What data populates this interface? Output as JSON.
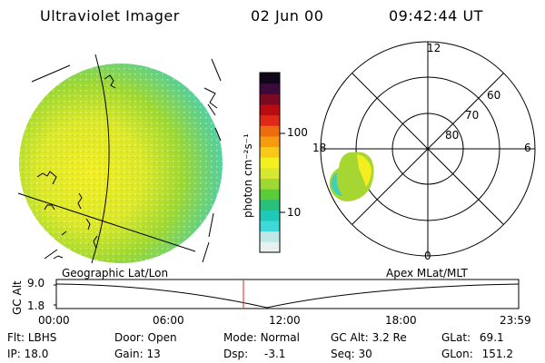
{
  "header": {
    "instrument": "Ultraviolet Imager",
    "date": "02 Jun 00",
    "time": "09:42:44 UT"
  },
  "colorbar": {
    "unit_label": "photon cm⁻²s⁻¹",
    "tick_labels": [
      "100",
      "10"
    ],
    "colors": [
      "#e8f0f0",
      "#bfe7e8",
      "#3fd8d8",
      "#1ec9b8",
      "#28c07a",
      "#5acc3a",
      "#9ed832",
      "#d8e830",
      "#f4f020",
      "#f8c818",
      "#f89a10",
      "#f06a10",
      "#e02818",
      "#b80c10",
      "#7a0a24",
      "#3a0a3c",
      "#100818"
    ]
  },
  "polar_plot": {
    "mlt_labels": [
      "12",
      "18",
      "6",
      "0"
    ],
    "lat_labels": [
      "60",
      "70",
      "80"
    ]
  },
  "altitude_panel": {
    "left_title": "Geographic Lat/Lon",
    "right_title": "Apex MLat/MLT",
    "axis_label": "GC Alt",
    "y_ticks": [
      "9.0",
      "1.8"
    ],
    "x_ticks": [
      "00:00",
      "06:00",
      "12:00",
      "18:00",
      "23:59"
    ],
    "current_time_marker": "09:42"
  },
  "status": {
    "flt_label": "Flt:",
    "flt_value": "LBHS",
    "ip_label": "IP:",
    "ip_value": "18.0",
    "door_label": "Door:",
    "door_value": "Open",
    "gain_label": "Gain:",
    "gain_value": "13",
    "mode_label": "Mode:",
    "mode_value": "Normal",
    "dsp_label": "Dsp:",
    "dsp_value": "-3.1",
    "gcalt_label": "GC Alt:",
    "gcalt_value": "3.2 Re",
    "seq_label": "Seq:",
    "seq_value": "30",
    "glat_label": "GLat:",
    "glat_value": "69.1",
    "glon_label": "GLon:",
    "glon_value": "151.2"
  }
}
